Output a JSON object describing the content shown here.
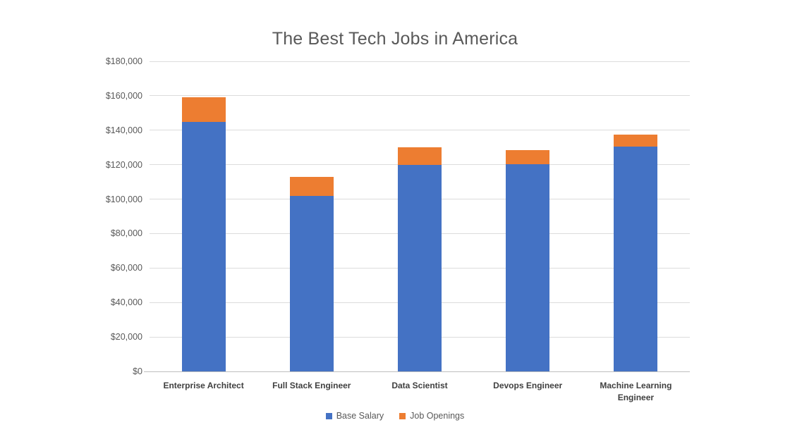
{
  "title": "The Best Tech Jobs in America",
  "colors": {
    "base_salary": "#4472C4",
    "job_openings": "#ED7D31",
    "title_text": "#595959",
    "axis_text": "#595959",
    "category_text": "#404040",
    "gridline": "#DCDCDC",
    "axis_line": "#BFBFBF",
    "background": "#FFFFFF"
  },
  "legend": [
    {
      "label": "Base Salary",
      "color": "#4472C4"
    },
    {
      "label": "Job Openings",
      "color": "#ED7D31"
    }
  ],
  "chart_data": {
    "type": "bar",
    "stacked": true,
    "title": "The Best Tech Jobs in America",
    "categories": [
      "Enterprise Architect",
      "Full Stack Engineer",
      "Data Scientist",
      "Devops Engineer",
      "Machine Learning Engineer"
    ],
    "series": [
      {
        "name": "Base Salary",
        "color": "#4472C4",
        "values": [
          144997,
          101794,
          120000,
          120095,
          130489
        ]
      },
      {
        "name": "Job Openings",
        "color": "#ED7D31",
        "values": [
          14021,
          11252,
          10071,
          8548,
          6801
        ]
      }
    ],
    "xlabel": "",
    "ylabel": "",
    "ylim": [
      0,
      180000
    ],
    "ytick_interval": 20000,
    "yticks": [
      "$180,000",
      "$160,000",
      "$140,000",
      "$120,000",
      "$100,000",
      "$80,000",
      "$60,000",
      "$40,000",
      "$20,000",
      "$0"
    ],
    "grid": true,
    "legend_position": "bottom"
  }
}
